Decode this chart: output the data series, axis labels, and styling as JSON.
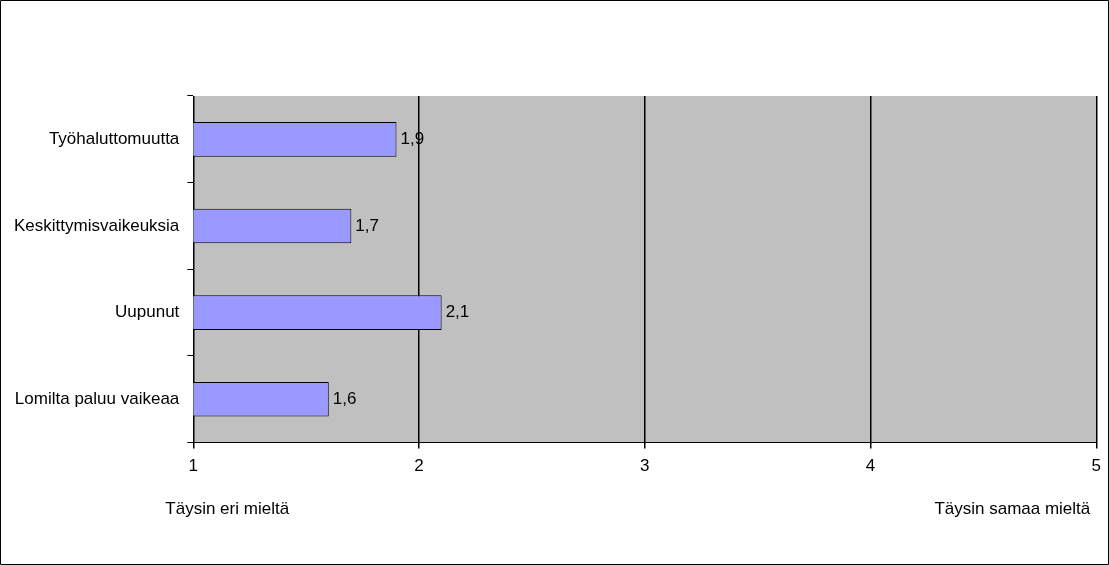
{
  "chart_data": {
    "type": "bar",
    "orientation": "horizontal",
    "categories": [
      "Työhaluttomuutta",
      "Keskittymisvaikeuksia",
      "Uupunut",
      "Lomilta paluu vaikeaa"
    ],
    "values": [
      1.9,
      1.7,
      2.1,
      1.6
    ],
    "color": "#9999ff",
    "value_labels": [
      "1,9",
      "1,7",
      "2,1",
      "1,6"
    ],
    "xlim": [
      1,
      5
    ],
    "xticks": [
      1,
      2,
      3,
      4,
      5
    ],
    "grid": "x",
    "legend": false,
    "annotations": [
      "Täysin eri mieltä",
      "Täysin samaa mieltä"
    ]
  }
}
